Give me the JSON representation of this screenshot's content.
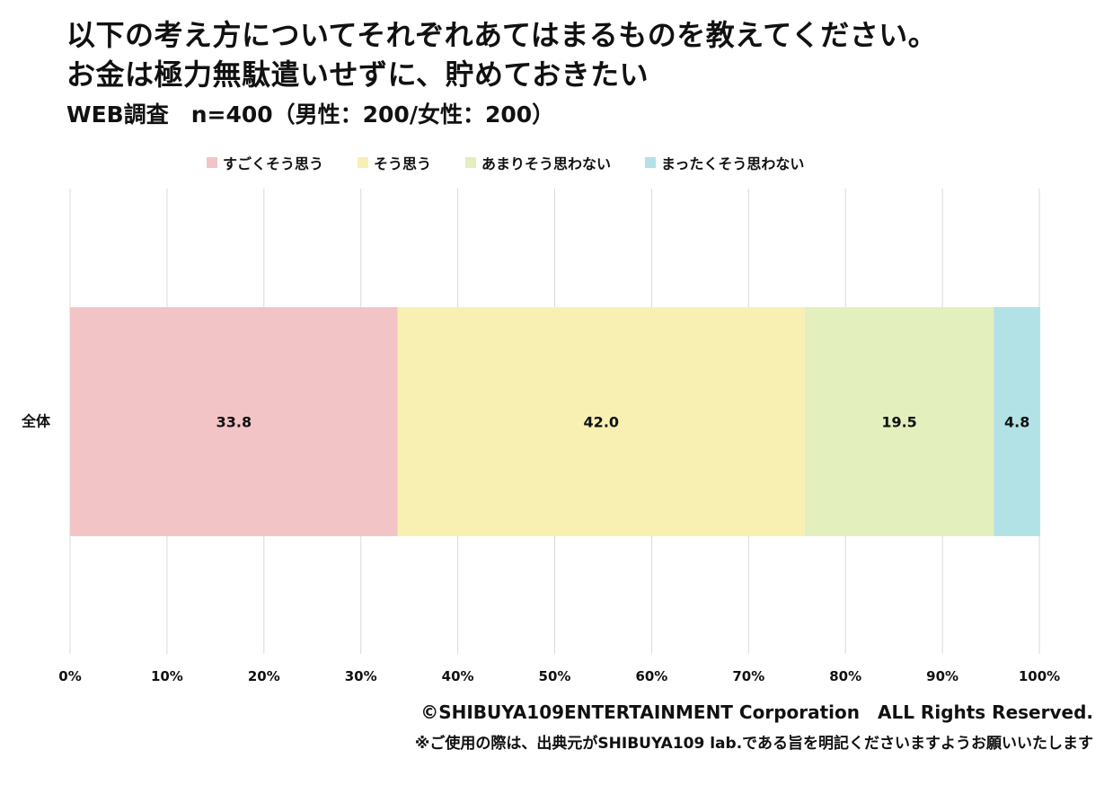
{
  "title_line1": "以下の考え方についてそれぞれあてはまるものを教えてください。",
  "title_line2": "お金は極力無駄遣いせずに、貯めておきたい",
  "subtitle": "WEB調査　n=400（男性：200/女性：200）",
  "footer": {
    "copyright": "©SHIBUYA109ENTERTAINMENT Corporation　ALL Rights Reserved.",
    "note": "※ご使用の際は、出典元がSHIBUYA109 lab.である旨を明記くださいますようお願いいたします"
  },
  "chart_data": {
    "type": "bar",
    "orientation": "horizontal",
    "stacked": true,
    "categories": [
      "全体"
    ],
    "series": [
      {
        "name": "すごくそう思う",
        "values": [
          33.8
        ],
        "label": "33.8",
        "color": "#f2c4c6"
      },
      {
        "name": "そう思う",
        "values": [
          42.0
        ],
        "label": "42.0",
        "color": "#f8efb3"
      },
      {
        "name": "あまりそう思わない",
        "values": [
          19.5
        ],
        "label": "19.5",
        "color": "#e3efbd"
      },
      {
        "name": "まったくそう思わない",
        "values": [
          4.8
        ],
        "label": "4.8",
        "color": "#b3e2e6"
      }
    ],
    "xlim": [
      0,
      100
    ],
    "x_ticks": [
      "0%",
      "10%",
      "20%",
      "30%",
      "40%",
      "50%",
      "60%",
      "70%",
      "80%",
      "90%",
      "100%"
    ],
    "grid": true,
    "legend_position": "top"
  }
}
